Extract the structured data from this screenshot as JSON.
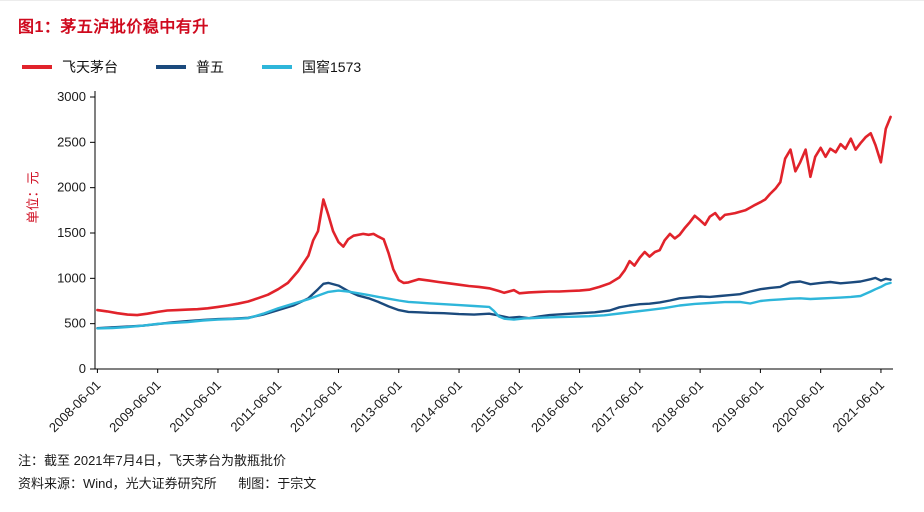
{
  "header": {
    "title": "图1：茅五泸批价稳中有升"
  },
  "colors": {
    "title": "#cf0a1e",
    "axis": "#000000",
    "tick_text": "#1a1a1a"
  },
  "ylabel": "单位：元",
  "notes": {
    "line1": "注：截至 2021年7月4日，飞天茅台为散瓶批价",
    "line2": "资料来源：Wind，光大证券研究所      制图：于宗文"
  },
  "chart_data": {
    "type": "line",
    "title": "图1：茅五泸批价稳中有升",
    "xlabel": "",
    "ylabel": "单位：元",
    "ylim": [
      0,
      3000
    ],
    "ytick_step": 500,
    "xlim": [
      2008.38,
      2021.62
    ],
    "grid": false,
    "legend_position": "top-left",
    "x_tick_values": [
      2008.42,
      2009.42,
      2010.42,
      2011.42,
      2012.42,
      2013.42,
      2014.42,
      2015.42,
      2016.42,
      2017.42,
      2018.42,
      2019.42,
      2020.42,
      2021.42
    ],
    "x_tick_labels": [
      "2008-06-01",
      "2009-06-01",
      "2010-06-01",
      "2011-06-01",
      "2012-06-01",
      "2013-06-01",
      "2014-06-01",
      "2015-06-01",
      "2016-06-01",
      "2017-06-01",
      "2018-06-01",
      "2019-06-01",
      "2020-06-01",
      "2021-06-01"
    ],
    "series": [
      {
        "name": "普五",
        "color": "#1b4a7d",
        "width": 2.4,
        "points": [
          [
            2008.42,
            450
          ],
          [
            2008.67,
            460
          ],
          [
            2008.92,
            468
          ],
          [
            2009.17,
            478
          ],
          [
            2009.42,
            495
          ],
          [
            2009.67,
            515
          ],
          [
            2009.92,
            528
          ],
          [
            2010.17,
            540
          ],
          [
            2010.42,
            550
          ],
          [
            2010.67,
            555
          ],
          [
            2010.92,
            565
          ],
          [
            2011.17,
            600
          ],
          [
            2011.42,
            650
          ],
          [
            2011.67,
            700
          ],
          [
            2011.92,
            780
          ],
          [
            2012.08,
            880
          ],
          [
            2012.17,
            940
          ],
          [
            2012.25,
            950
          ],
          [
            2012.42,
            920
          ],
          [
            2012.58,
            860
          ],
          [
            2012.75,
            810
          ],
          [
            2012.92,
            780
          ],
          [
            2013.08,
            740
          ],
          [
            2013.25,
            690
          ],
          [
            2013.42,
            650
          ],
          [
            2013.58,
            630
          ],
          [
            2013.75,
            625
          ],
          [
            2013.92,
            620
          ],
          [
            2014.17,
            615
          ],
          [
            2014.42,
            605
          ],
          [
            2014.67,
            600
          ],
          [
            2014.92,
            610
          ],
          [
            2015.08,
            590
          ],
          [
            2015.25,
            565
          ],
          [
            2015.42,
            575
          ],
          [
            2015.58,
            560
          ],
          [
            2015.75,
            580
          ],
          [
            2015.92,
            595
          ],
          [
            2016.17,
            605
          ],
          [
            2016.42,
            615
          ],
          [
            2016.67,
            625
          ],
          [
            2016.92,
            645
          ],
          [
            2017.08,
            680
          ],
          [
            2017.25,
            700
          ],
          [
            2017.42,
            715
          ],
          [
            2017.58,
            720
          ],
          [
            2017.75,
            735
          ],
          [
            2017.92,
            755
          ],
          [
            2018.08,
            780
          ],
          [
            2018.25,
            790
          ],
          [
            2018.42,
            800
          ],
          [
            2018.58,
            795
          ],
          [
            2018.75,
            805
          ],
          [
            2018.92,
            815
          ],
          [
            2019.08,
            825
          ],
          [
            2019.25,
            855
          ],
          [
            2019.42,
            880
          ],
          [
            2019.58,
            895
          ],
          [
            2019.75,
            905
          ],
          [
            2019.92,
            955
          ],
          [
            2020.08,
            965
          ],
          [
            2020.25,
            935
          ],
          [
            2020.42,
            950
          ],
          [
            2020.58,
            960
          ],
          [
            2020.75,
            945
          ],
          [
            2020.92,
            955
          ],
          [
            2021.08,
            965
          ],
          [
            2021.25,
            990
          ],
          [
            2021.33,
            1005
          ],
          [
            2021.42,
            975
          ],
          [
            2021.5,
            995
          ],
          [
            2021.58,
            985
          ]
        ]
      },
      {
        "name": "国窖1573",
        "color": "#2eb6da",
        "width": 2.4,
        "points": [
          [
            2008.42,
            448
          ],
          [
            2008.67,
            452
          ],
          [
            2008.92,
            462
          ],
          [
            2009.17,
            478
          ],
          [
            2009.42,
            498
          ],
          [
            2009.67,
            508
          ],
          [
            2009.92,
            518
          ],
          [
            2010.17,
            535
          ],
          [
            2010.42,
            545
          ],
          [
            2010.67,
            550
          ],
          [
            2010.92,
            560
          ],
          [
            2011.17,
            610
          ],
          [
            2011.42,
            670
          ],
          [
            2011.67,
            720
          ],
          [
            2011.92,
            770
          ],
          [
            2012.08,
            810
          ],
          [
            2012.25,
            850
          ],
          [
            2012.42,
            865
          ],
          [
            2012.58,
            855
          ],
          [
            2012.75,
            835
          ],
          [
            2012.92,
            815
          ],
          [
            2013.08,
            795
          ],
          [
            2013.25,
            775
          ],
          [
            2013.42,
            755
          ],
          [
            2013.58,
            740
          ],
          [
            2013.75,
            732
          ],
          [
            2013.92,
            725
          ],
          [
            2014.17,
            715
          ],
          [
            2014.42,
            705
          ],
          [
            2014.67,
            695
          ],
          [
            2014.92,
            685
          ],
          [
            2015.0,
            640
          ],
          [
            2015.08,
            580
          ],
          [
            2015.17,
            555
          ],
          [
            2015.33,
            545
          ],
          [
            2015.5,
            558
          ],
          [
            2015.67,
            562
          ],
          [
            2015.83,
            567
          ],
          [
            2016.08,
            572
          ],
          [
            2016.33,
            577
          ],
          [
            2016.58,
            582
          ],
          [
            2016.83,
            592
          ],
          [
            2017.08,
            612
          ],
          [
            2017.33,
            632
          ],
          [
            2017.58,
            652
          ],
          [
            2017.83,
            672
          ],
          [
            2018.08,
            700
          ],
          [
            2018.33,
            718
          ],
          [
            2018.58,
            728
          ],
          [
            2018.83,
            738
          ],
          [
            2019.08,
            740
          ],
          [
            2019.25,
            722
          ],
          [
            2019.42,
            750
          ],
          [
            2019.58,
            760
          ],
          [
            2019.75,
            768
          ],
          [
            2019.92,
            775
          ],
          [
            2020.08,
            780
          ],
          [
            2020.25,
            772
          ],
          [
            2020.42,
            778
          ],
          [
            2020.58,
            782
          ],
          [
            2020.75,
            788
          ],
          [
            2020.92,
            795
          ],
          [
            2021.08,
            805
          ],
          [
            2021.25,
            855
          ],
          [
            2021.33,
            880
          ],
          [
            2021.42,
            905
          ],
          [
            2021.5,
            935
          ],
          [
            2021.58,
            950
          ]
        ]
      },
      {
        "name": "飞天茅台",
        "color": "#e1232b",
        "width": 2.6,
        "points": [
          [
            2008.42,
            650
          ],
          [
            2008.58,
            635
          ],
          [
            2008.75,
            615
          ],
          [
            2008.92,
            600
          ],
          [
            2009.08,
            595
          ],
          [
            2009.25,
            610
          ],
          [
            2009.42,
            630
          ],
          [
            2009.58,
            645
          ],
          [
            2009.75,
            650
          ],
          [
            2009.92,
            655
          ],
          [
            2010.08,
            660
          ],
          [
            2010.25,
            670
          ],
          [
            2010.42,
            685
          ],
          [
            2010.58,
            700
          ],
          [
            2010.75,
            720
          ],
          [
            2010.92,
            745
          ],
          [
            2011.08,
            780
          ],
          [
            2011.25,
            820
          ],
          [
            2011.42,
            880
          ],
          [
            2011.58,
            950
          ],
          [
            2011.75,
            1080
          ],
          [
            2011.92,
            1250
          ],
          [
            2012.0,
            1420
          ],
          [
            2012.08,
            1520
          ],
          [
            2012.17,
            1870
          ],
          [
            2012.25,
            1700
          ],
          [
            2012.33,
            1520
          ],
          [
            2012.42,
            1400
          ],
          [
            2012.5,
            1350
          ],
          [
            2012.58,
            1430
          ],
          [
            2012.67,
            1470
          ],
          [
            2012.83,
            1490
          ],
          [
            2012.92,
            1480
          ],
          [
            2013.0,
            1490
          ],
          [
            2013.08,
            1460
          ],
          [
            2013.17,
            1430
          ],
          [
            2013.25,
            1280
          ],
          [
            2013.33,
            1100
          ],
          [
            2013.42,
            980
          ],
          [
            2013.5,
            950
          ],
          [
            2013.58,
            955
          ],
          [
            2013.75,
            990
          ],
          [
            2013.92,
            975
          ],
          [
            2014.08,
            960
          ],
          [
            2014.25,
            945
          ],
          [
            2014.42,
            930
          ],
          [
            2014.58,
            915
          ],
          [
            2014.75,
            905
          ],
          [
            2014.92,
            890
          ],
          [
            2015.08,
            860
          ],
          [
            2015.17,
            840
          ],
          [
            2015.33,
            870
          ],
          [
            2015.42,
            835
          ],
          [
            2015.58,
            845
          ],
          [
            2015.75,
            850
          ],
          [
            2015.92,
            855
          ],
          [
            2016.08,
            855
          ],
          [
            2016.25,
            860
          ],
          [
            2016.42,
            865
          ],
          [
            2016.58,
            875
          ],
          [
            2016.75,
            905
          ],
          [
            2016.92,
            945
          ],
          [
            2017.08,
            1010
          ],
          [
            2017.17,
            1090
          ],
          [
            2017.25,
            1190
          ],
          [
            2017.33,
            1140
          ],
          [
            2017.42,
            1230
          ],
          [
            2017.5,
            1290
          ],
          [
            2017.58,
            1240
          ],
          [
            2017.67,
            1290
          ],
          [
            2017.75,
            1310
          ],
          [
            2017.83,
            1420
          ],
          [
            2017.92,
            1490
          ],
          [
            2018.0,
            1440
          ],
          [
            2018.08,
            1480
          ],
          [
            2018.17,
            1560
          ],
          [
            2018.25,
            1620
          ],
          [
            2018.33,
            1690
          ],
          [
            2018.42,
            1640
          ],
          [
            2018.5,
            1590
          ],
          [
            2018.58,
            1680
          ],
          [
            2018.67,
            1720
          ],
          [
            2018.75,
            1650
          ],
          [
            2018.83,
            1700
          ],
          [
            2018.92,
            1710
          ],
          [
            2019.0,
            1720
          ],
          [
            2019.08,
            1735
          ],
          [
            2019.17,
            1750
          ],
          [
            2019.25,
            1780
          ],
          [
            2019.33,
            1810
          ],
          [
            2019.42,
            1840
          ],
          [
            2019.5,
            1870
          ],
          [
            2019.58,
            1930
          ],
          [
            2019.67,
            1990
          ],
          [
            2019.75,
            2060
          ],
          [
            2019.83,
            2320
          ],
          [
            2019.92,
            2420
          ],
          [
            2020.0,
            2180
          ],
          [
            2020.08,
            2280
          ],
          [
            2020.17,
            2420
          ],
          [
            2020.25,
            2120
          ],
          [
            2020.33,
            2340
          ],
          [
            2020.42,
            2440
          ],
          [
            2020.5,
            2340
          ],
          [
            2020.58,
            2430
          ],
          [
            2020.67,
            2390
          ],
          [
            2020.75,
            2480
          ],
          [
            2020.83,
            2430
          ],
          [
            2020.92,
            2540
          ],
          [
            2021.0,
            2420
          ],
          [
            2021.08,
            2490
          ],
          [
            2021.17,
            2560
          ],
          [
            2021.25,
            2600
          ],
          [
            2021.33,
            2470
          ],
          [
            2021.42,
            2280
          ],
          [
            2021.5,
            2650
          ],
          [
            2021.58,
            2780
          ]
        ]
      }
    ],
    "legend_order": [
      2,
      0,
      1
    ]
  }
}
